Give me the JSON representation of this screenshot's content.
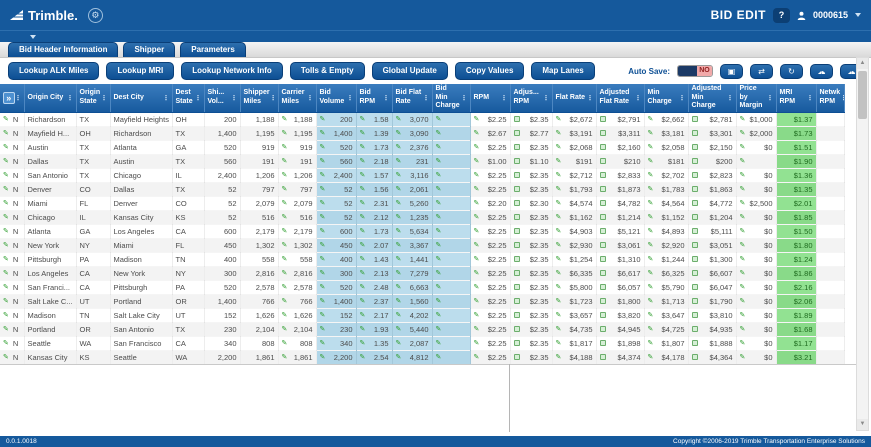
{
  "topbar": {
    "brand": "Trimble.",
    "title": "BID EDIT",
    "help_label": "?",
    "account_id": "0000615"
  },
  "tabs": [
    {
      "label": "Bid Header Information"
    },
    {
      "label": "Shipper"
    },
    {
      "label": "Parameters"
    }
  ],
  "toolbar": {
    "actions": [
      "Lookup ALK Miles",
      "Lookup MRI",
      "Lookup Network Info",
      "Tolls & Empty",
      "Global Update",
      "Copy Values",
      "Map Lanes"
    ],
    "auto_save": {
      "label": "Auto Save:",
      "value": "NO"
    },
    "icon_buttons": [
      "save-icon",
      "swap-arrows-icon",
      "refresh-icon",
      "cloud-download-icon",
      "cloud-upload-icon"
    ]
  },
  "grid": {
    "columns": [
      {
        "key": "rowtools",
        "label": ""
      },
      {
        "key": "origin_city",
        "label": "Origin City"
      },
      {
        "key": "origin_state",
        "label": "Origin State"
      },
      {
        "key": "dest_city",
        "label": "Dest City"
      },
      {
        "key": "dest_state",
        "label": "Dest State"
      },
      {
        "key": "shi_vol",
        "label": "Shi... Vol..."
      },
      {
        "key": "shipper_miles",
        "label": "Shipper Miles"
      },
      {
        "key": "carrier_miles",
        "label": "Carrier Miles"
      },
      {
        "key": "bid_volume",
        "label": "Bid Volume"
      },
      {
        "key": "bid_rpm",
        "label": "Bid RPM"
      },
      {
        "key": "bid_flat_rate",
        "label": "Bid Flat Rate"
      },
      {
        "key": "bid_min_charge",
        "label": "Bid Min Charge"
      },
      {
        "key": "rpm",
        "label": "RPM"
      },
      {
        "key": "adj_rpm",
        "label": "Adjus... RPM"
      },
      {
        "key": "flat_rate",
        "label": "Flat Rate"
      },
      {
        "key": "adj_flat_rate",
        "label": "Adjusted Flat Rate"
      },
      {
        "key": "min_charge",
        "label": "Min Charge"
      },
      {
        "key": "adj_min_charge",
        "label": "Adjusted Min Charge"
      },
      {
        "key": "price_by_margin",
        "label": "Price by Margin"
      },
      {
        "key": "mri_rpm",
        "label": "MRI RPM"
      },
      {
        "key": "netwk_rpm",
        "label": "Netwk RPM"
      }
    ],
    "rows": [
      {
        "flag": "N",
        "origin_city": "Richardson",
        "origin_state": "TX",
        "dest_city": "Mayfield Heights",
        "dest_state": "OH",
        "shi_vol": "200",
        "shipper_miles": "1,188",
        "carrier_miles": "1,188",
        "bid_volume": "200",
        "bid_rpm": "1.58",
        "bid_flat_rate": "3,070",
        "bid_min_charge": "",
        "rpm": "$2.25",
        "adj_rpm": "$2.35",
        "flat_rate": "$2,672",
        "adj_flat_rate": "$2,791",
        "min_charge": "$2,662",
        "adj_min_charge": "$2,781",
        "price_by_margin": "$1,000",
        "mri_rpm": "$1.37",
        "netwk_rpm": ""
      },
      {
        "flag": "N",
        "origin_city": "Mayfield H...",
        "origin_state": "OH",
        "dest_city": "Richardson",
        "dest_state": "TX",
        "shi_vol": "1,400",
        "shipper_miles": "1,195",
        "carrier_miles": "1,195",
        "bid_volume": "1,400",
        "bid_rpm": "1.39",
        "bid_flat_rate": "3,090",
        "bid_min_charge": "",
        "rpm": "$2.67",
        "adj_rpm": "$2.77",
        "flat_rate": "$3,191",
        "adj_flat_rate": "$3,311",
        "min_charge": "$3,181",
        "adj_min_charge": "$3,301",
        "price_by_margin": "$2,000",
        "mri_rpm": "$1.73",
        "netwk_rpm": ""
      },
      {
        "flag": "N",
        "origin_city": "Austin",
        "origin_state": "TX",
        "dest_city": "Atlanta",
        "dest_state": "GA",
        "shi_vol": "520",
        "shipper_miles": "919",
        "carrier_miles": "919",
        "bid_volume": "520",
        "bid_rpm": "1.73",
        "bid_flat_rate": "2,376",
        "bid_min_charge": "",
        "rpm": "$2.25",
        "adj_rpm": "$2.35",
        "flat_rate": "$2,068",
        "adj_flat_rate": "$2,160",
        "min_charge": "$2,058",
        "adj_min_charge": "$2,150",
        "price_by_margin": "$0",
        "mri_rpm": "$1.51",
        "netwk_rpm": ""
      },
      {
        "flag": "N",
        "origin_city": "Dallas",
        "origin_state": "TX",
        "dest_city": "Austin",
        "dest_state": "TX",
        "shi_vol": "560",
        "shipper_miles": "191",
        "carrier_miles": "191",
        "bid_volume": "560",
        "bid_rpm": "2.18",
        "bid_flat_rate": "231",
        "bid_min_charge": "",
        "rpm": "$1.00",
        "adj_rpm": "$1.10",
        "flat_rate": "$191",
        "adj_flat_rate": "$210",
        "min_charge": "$181",
        "adj_min_charge": "$200",
        "price_by_margin": "",
        "mri_rpm": "$1.90",
        "netwk_rpm": ""
      },
      {
        "flag": "N",
        "origin_city": "San Antonio",
        "origin_state": "TX",
        "dest_city": "Chicago",
        "dest_state": "IL",
        "shi_vol": "2,400",
        "shipper_miles": "1,206",
        "carrier_miles": "1,206",
        "bid_volume": "2,400",
        "bid_rpm": "1.57",
        "bid_flat_rate": "3,116",
        "bid_min_charge": "",
        "rpm": "$2.25",
        "adj_rpm": "$2.35",
        "flat_rate": "$2,712",
        "adj_flat_rate": "$2,833",
        "min_charge": "$2,702",
        "adj_min_charge": "$2,823",
        "price_by_margin": "$0",
        "mri_rpm": "$1.36",
        "netwk_rpm": ""
      },
      {
        "flag": "N",
        "origin_city": "Denver",
        "origin_state": "CO",
        "dest_city": "Dallas",
        "dest_state": "TX",
        "shi_vol": "52",
        "shipper_miles": "797",
        "carrier_miles": "797",
        "bid_volume": "52",
        "bid_rpm": "1.56",
        "bid_flat_rate": "2,061",
        "bid_min_charge": "",
        "rpm": "$2.25",
        "adj_rpm": "$2.35",
        "flat_rate": "$1,793",
        "adj_flat_rate": "$1,873",
        "min_charge": "$1,783",
        "adj_min_charge": "$1,863",
        "price_by_margin": "$0",
        "mri_rpm": "$1.35",
        "netwk_rpm": ""
      },
      {
        "flag": "N",
        "origin_city": "Miami",
        "origin_state": "FL",
        "dest_city": "Denver",
        "dest_state": "CO",
        "shi_vol": "52",
        "shipper_miles": "2,079",
        "carrier_miles": "2,079",
        "bid_volume": "52",
        "bid_rpm": "2.31",
        "bid_flat_rate": "5,260",
        "bid_min_charge": "",
        "rpm": "$2.20",
        "adj_rpm": "$2.30",
        "flat_rate": "$4,574",
        "adj_flat_rate": "$4,782",
        "min_charge": "$4,564",
        "adj_min_charge": "$4,772",
        "price_by_margin": "$2,500",
        "mri_rpm": "$2.01",
        "netwk_rpm": ""
      },
      {
        "flag": "N",
        "origin_city": "Chicago",
        "origin_state": "IL",
        "dest_city": "Kansas City",
        "dest_state": "KS",
        "shi_vol": "52",
        "shipper_miles": "516",
        "carrier_miles": "516",
        "bid_volume": "52",
        "bid_rpm": "2.12",
        "bid_flat_rate": "1,235",
        "bid_min_charge": "",
        "rpm": "$2.25",
        "adj_rpm": "$2.35",
        "flat_rate": "$1,162",
        "adj_flat_rate": "$1,214",
        "min_charge": "$1,152",
        "adj_min_charge": "$1,204",
        "price_by_margin": "$0",
        "mri_rpm": "$1.85",
        "netwk_rpm": ""
      },
      {
        "flag": "N",
        "origin_city": "Atlanta",
        "origin_state": "GA",
        "dest_city": "Los Angeles",
        "dest_state": "CA",
        "shi_vol": "600",
        "shipper_miles": "2,179",
        "carrier_miles": "2,179",
        "bid_volume": "600",
        "bid_rpm": "1.73",
        "bid_flat_rate": "5,634",
        "bid_min_charge": "",
        "rpm": "$2.25",
        "adj_rpm": "$2.35",
        "flat_rate": "$4,903",
        "adj_flat_rate": "$5,121",
        "min_charge": "$4,893",
        "adj_min_charge": "$5,111",
        "price_by_margin": "$0",
        "mri_rpm": "$1.50",
        "netwk_rpm": ""
      },
      {
        "flag": "N",
        "origin_city": "New York",
        "origin_state": "NY",
        "dest_city": "Miami",
        "dest_state": "FL",
        "shi_vol": "450",
        "shipper_miles": "1,302",
        "carrier_miles": "1,302",
        "bid_volume": "450",
        "bid_rpm": "2.07",
        "bid_flat_rate": "3,367",
        "bid_min_charge": "",
        "rpm": "$2.25",
        "adj_rpm": "$2.35",
        "flat_rate": "$2,930",
        "adj_flat_rate": "$3,061",
        "min_charge": "$2,920",
        "adj_min_charge": "$3,051",
        "price_by_margin": "$0",
        "mri_rpm": "$1.80",
        "netwk_rpm": ""
      },
      {
        "flag": "N",
        "origin_city": "Pittsburgh",
        "origin_state": "PA",
        "dest_city": "Madison",
        "dest_state": "TN",
        "shi_vol": "400",
        "shipper_miles": "558",
        "carrier_miles": "558",
        "bid_volume": "400",
        "bid_rpm": "1.43",
        "bid_flat_rate": "1,441",
        "bid_min_charge": "",
        "rpm": "$2.25",
        "adj_rpm": "$2.35",
        "flat_rate": "$1,254",
        "adj_flat_rate": "$1,310",
        "min_charge": "$1,244",
        "adj_min_charge": "$1,300",
        "price_by_margin": "$0",
        "mri_rpm": "$1.24",
        "netwk_rpm": ""
      },
      {
        "flag": "N",
        "origin_city": "Los Angeles",
        "origin_state": "CA",
        "dest_city": "New York",
        "dest_state": "NY",
        "shi_vol": "300",
        "shipper_miles": "2,816",
        "carrier_miles": "2,816",
        "bid_volume": "300",
        "bid_rpm": "2.13",
        "bid_flat_rate": "7,279",
        "bid_min_charge": "",
        "rpm": "$2.25",
        "adj_rpm": "$2.35",
        "flat_rate": "$6,335",
        "adj_flat_rate": "$6,617",
        "min_charge": "$6,325",
        "adj_min_charge": "$6,607",
        "price_by_margin": "$0",
        "mri_rpm": "$1.86",
        "netwk_rpm": ""
      },
      {
        "flag": "N",
        "origin_city": "San Franci...",
        "origin_state": "CA",
        "dest_city": "Pittsburgh",
        "dest_state": "PA",
        "shi_vol": "520",
        "shipper_miles": "2,578",
        "carrier_miles": "2,578",
        "bid_volume": "520",
        "bid_rpm": "2.48",
        "bid_flat_rate": "6,663",
        "bid_min_charge": "",
        "rpm": "$2.25",
        "adj_rpm": "$2.35",
        "flat_rate": "$5,800",
        "adj_flat_rate": "$6,057",
        "min_charge": "$5,790",
        "adj_min_charge": "$6,047",
        "price_by_margin": "$0",
        "mri_rpm": "$2.16",
        "netwk_rpm": ""
      },
      {
        "flag": "N",
        "origin_city": "Salt Lake C...",
        "origin_state": "UT",
        "dest_city": "Portland",
        "dest_state": "OR",
        "shi_vol": "1,400",
        "shipper_miles": "766",
        "carrier_miles": "766",
        "bid_volume": "1,400",
        "bid_rpm": "2.37",
        "bid_flat_rate": "1,560",
        "bid_min_charge": "",
        "rpm": "$2.25",
        "adj_rpm": "$2.35",
        "flat_rate": "$1,723",
        "adj_flat_rate": "$1,800",
        "min_charge": "$1,713",
        "adj_min_charge": "$1,790",
        "price_by_margin": "$0",
        "mri_rpm": "$2.06",
        "netwk_rpm": ""
      },
      {
        "flag": "N",
        "origin_city": "Madison",
        "origin_state": "TN",
        "dest_city": "Salt Lake City",
        "dest_state": "UT",
        "shi_vol": "152",
        "shipper_miles": "1,626",
        "carrier_miles": "1,626",
        "bid_volume": "152",
        "bid_rpm": "2.17",
        "bid_flat_rate": "4,202",
        "bid_min_charge": "",
        "rpm": "$2.25",
        "adj_rpm": "$2.35",
        "flat_rate": "$3,657",
        "adj_flat_rate": "$3,820",
        "min_charge": "$3,647",
        "adj_min_charge": "$3,810",
        "price_by_margin": "$0",
        "mri_rpm": "$1.89",
        "netwk_rpm": ""
      },
      {
        "flag": "N",
        "origin_city": "Portland",
        "origin_state": "OR",
        "dest_city": "San Antonio",
        "dest_state": "TX",
        "shi_vol": "230",
        "shipper_miles": "2,104",
        "carrier_miles": "2,104",
        "bid_volume": "230",
        "bid_rpm": "1.93",
        "bid_flat_rate": "5,440",
        "bid_min_charge": "",
        "rpm": "$2.25",
        "adj_rpm": "$2.35",
        "flat_rate": "$4,735",
        "adj_flat_rate": "$4,945",
        "min_charge": "$4,725",
        "adj_min_charge": "$4,935",
        "price_by_margin": "$0",
        "mri_rpm": "$1.68",
        "netwk_rpm": ""
      },
      {
        "flag": "N",
        "origin_city": "Seattle",
        "origin_state": "WA",
        "dest_city": "San Francisco",
        "dest_state": "CA",
        "shi_vol": "340",
        "shipper_miles": "808",
        "carrier_miles": "808",
        "bid_volume": "340",
        "bid_rpm": "1.35",
        "bid_flat_rate": "2,087",
        "bid_min_charge": "",
        "rpm": "$2.25",
        "adj_rpm": "$2.35",
        "flat_rate": "$1,817",
        "adj_flat_rate": "$1,898",
        "min_charge": "$1,807",
        "adj_min_charge": "$1,888",
        "price_by_margin": "$0",
        "mri_rpm": "$1.17",
        "netwk_rpm": ""
      },
      {
        "flag": "N",
        "origin_city": "Kansas City",
        "origin_state": "KS",
        "dest_city": "Seattle",
        "dest_state": "WA",
        "shi_vol": "2,200",
        "shipper_miles": "1,861",
        "carrier_miles": "1,861",
        "bid_volume": "2,200",
        "bid_rpm": "2.54",
        "bid_flat_rate": "4,812",
        "bid_min_charge": "",
        "rpm": "$2.25",
        "adj_rpm": "$2.35",
        "flat_rate": "$4,188",
        "adj_flat_rate": "$4,374",
        "min_charge": "$4,178",
        "adj_min_charge": "$4,364",
        "price_by_margin": "$0",
        "mri_rpm": "$3.21",
        "netwk_rpm": ""
      }
    ]
  },
  "footer": {
    "version": "0.0.1.0018",
    "copyright": "Copyright ©2006-2019 Trimble Transportation Enterprise Solutions"
  },
  "colors": {
    "topbar_blue": "#15599c",
    "accent_blue": "#0d4f94",
    "bid_column_bg": "#b7d9e9",
    "mri_column_bg": "#8ee08e",
    "toggle_no_bg": "#f1a9a9",
    "toggle_no_text": "#8f1d1d",
    "pencil_green": "#2f9e2f"
  }
}
